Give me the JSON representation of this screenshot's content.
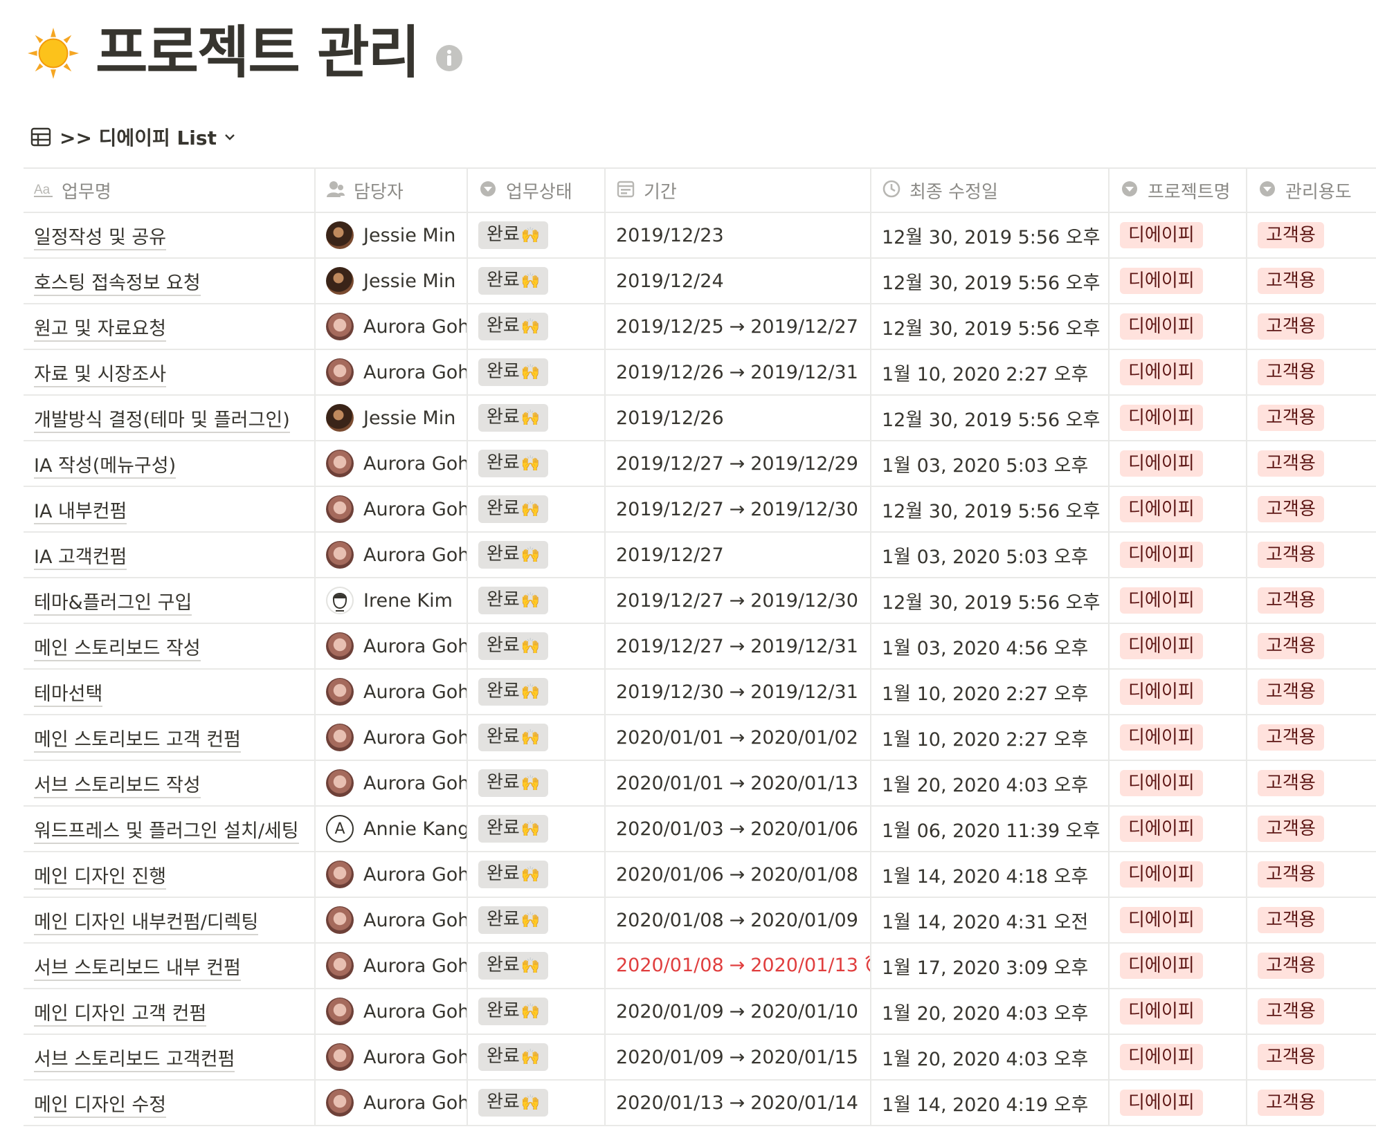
{
  "page": {
    "title": "프로젝트 관리",
    "icon": "sun-emoji"
  },
  "view": {
    "name": ">> 디에이피 List",
    "icon": "table-icon"
  },
  "columns": [
    {
      "key": "name",
      "label": "업무명",
      "icon": "text-property-icon"
    },
    {
      "key": "assignee",
      "label": "담당자",
      "icon": "person-property-icon"
    },
    {
      "key": "status",
      "label": "업무상태",
      "icon": "select-property-icon"
    },
    {
      "key": "period",
      "label": "기간",
      "icon": "calendar-property-icon"
    },
    {
      "key": "edited",
      "label": "최종 수정일",
      "icon": "clock-property-icon"
    },
    {
      "key": "project",
      "label": "프로젝트명",
      "icon": "select-property-icon"
    },
    {
      "key": "usage",
      "label": "관리용도",
      "icon": "select-property-icon"
    }
  ],
  "colors": {
    "status_tag_bg": "#e3e2e0",
    "project_tag_bg": "#ffe2dd",
    "overdue_text": "#e03e3e",
    "border": "#e9e9e7"
  },
  "rows": [
    {
      "name": "일정작성 및 공유",
      "assignee": "Jessie Min",
      "avatar": "jessie",
      "status": "완료",
      "start": "2019/12/23",
      "end": "",
      "edited": "12월 30, 2019 5:56 오후",
      "project": "디에이피",
      "usage": "고객용",
      "overdue": false
    },
    {
      "name": "호스팅 접속정보 요청",
      "assignee": "Jessie Min",
      "avatar": "jessie",
      "status": "완료",
      "start": "2019/12/24",
      "end": "",
      "edited": "12월 30, 2019 5:56 오후",
      "project": "디에이피",
      "usage": "고객용",
      "overdue": false
    },
    {
      "name": "원고 및 자료요청",
      "assignee": "Aurora Goh",
      "avatar": "aurora",
      "status": "완료",
      "start": "2019/12/25",
      "end": "2019/12/27",
      "edited": "12월 30, 2019 5:56 오후",
      "project": "디에이피",
      "usage": "고객용",
      "overdue": false
    },
    {
      "name": "자료 및 시장조사",
      "assignee": "Aurora Goh",
      "avatar": "aurora",
      "status": "완료",
      "start": "2019/12/26",
      "end": "2019/12/31",
      "edited": "1월 10, 2020 2:27 오후",
      "project": "디에이피",
      "usage": "고객용",
      "overdue": false
    },
    {
      "name": "개발방식 결정(테마 및 플러그인)",
      "assignee": "Jessie Min",
      "avatar": "jessie",
      "status": "완료",
      "start": "2019/12/26",
      "end": "",
      "edited": "12월 30, 2019 5:56 오후",
      "project": "디에이피",
      "usage": "고객용",
      "overdue": false
    },
    {
      "name": "IA 작성(메뉴구성)",
      "assignee": "Aurora Goh",
      "avatar": "aurora",
      "status": "완료",
      "start": "2019/12/27",
      "end": "2019/12/29",
      "edited": "1월 03, 2020 5:03 오후",
      "project": "디에이피",
      "usage": "고객용",
      "overdue": false
    },
    {
      "name": "IA 내부컨펌",
      "assignee": "Aurora Goh",
      "avatar": "aurora",
      "status": "완료",
      "start": "2019/12/27",
      "end": "2019/12/30",
      "edited": "12월 30, 2019 5:56 오후",
      "project": "디에이피",
      "usage": "고객용",
      "overdue": false
    },
    {
      "name": "IA 고객컨펌",
      "assignee": "Aurora Goh",
      "avatar": "aurora",
      "status": "완료",
      "start": "2019/12/27",
      "end": "",
      "edited": "1월 03, 2020 5:03 오후",
      "project": "디에이피",
      "usage": "고객용",
      "overdue": false
    },
    {
      "name": "테마&플러그인 구입",
      "assignee": "Irene Kim",
      "avatar": "irene",
      "status": "완료",
      "start": "2019/12/27",
      "end": "2019/12/30",
      "edited": "12월 30, 2019 5:56 오후",
      "project": "디에이피",
      "usage": "고객용",
      "overdue": false
    },
    {
      "name": "메인 스토리보드 작성",
      "assignee": "Aurora Goh",
      "avatar": "aurora",
      "status": "완료",
      "start": "2019/12/27",
      "end": "2019/12/31",
      "edited": "1월 03, 2020 4:56 오후",
      "project": "디에이피",
      "usage": "고객용",
      "overdue": false
    },
    {
      "name": "테마선택",
      "assignee": "Aurora Goh",
      "avatar": "aurora",
      "status": "완료",
      "start": "2019/12/30",
      "end": "2019/12/31",
      "edited": "1월 10, 2020 2:27 오후",
      "project": "디에이피",
      "usage": "고객용",
      "overdue": false
    },
    {
      "name": "메인 스토리보드 고객 컨펌",
      "assignee": "Aurora Goh",
      "avatar": "aurora",
      "status": "완료",
      "start": "2020/01/01",
      "end": "2020/01/02",
      "edited": "1월 10, 2020 2:27 오후",
      "project": "디에이피",
      "usage": "고객용",
      "overdue": false
    },
    {
      "name": "서브 스토리보드 작성",
      "assignee": "Aurora Goh",
      "avatar": "aurora",
      "status": "완료",
      "start": "2020/01/01",
      "end": "2020/01/13",
      "edited": "1월 20, 2020 4:03 오후",
      "project": "디에이피",
      "usage": "고객용",
      "overdue": false
    },
    {
      "name": "워드프레스 및 플러그인 설치/세팅",
      "assignee": "Annie Kang",
      "avatar": "annie",
      "status": "완료",
      "start": "2020/01/03",
      "end": "2020/01/06",
      "edited": "1월 06, 2020 11:39 오후",
      "project": "디에이피",
      "usage": "고객용",
      "overdue": false
    },
    {
      "name": "메인 디자인 진행",
      "assignee": "Aurora Goh",
      "avatar": "aurora",
      "status": "완료",
      "start": "2020/01/06",
      "end": "2020/01/08",
      "edited": "1월 14, 2020 4:18 오후",
      "project": "디에이피",
      "usage": "고객용",
      "overdue": false
    },
    {
      "name": "메인 디자인 내부컨펌/디렉팅",
      "assignee": "Aurora Goh",
      "avatar": "aurora",
      "status": "완료",
      "start": "2020/01/08",
      "end": "2020/01/09",
      "edited": "1월 14, 2020 4:31 오전",
      "project": "디에이피",
      "usage": "고객용",
      "overdue": false
    },
    {
      "name": "서브 스토리보드 내부 컨펌",
      "assignee": "Aurora Goh",
      "avatar": "aurora",
      "status": "완료",
      "start": "2020/01/08",
      "end": "2020/01/13",
      "edited": "1월 17, 2020 3:09 오후",
      "project": "디에이피",
      "usage": "고객용",
      "overdue": true
    },
    {
      "name": "메인 디자인 고객 컨펌",
      "assignee": "Aurora Goh",
      "avatar": "aurora",
      "status": "완료",
      "start": "2020/01/09",
      "end": "2020/01/10",
      "edited": "1월 20, 2020 4:03 오후",
      "project": "디에이피",
      "usage": "고객용",
      "overdue": false
    },
    {
      "name": "서브 스토리보드 고객컨펌",
      "assignee": "Aurora Goh",
      "avatar": "aurora",
      "status": "완료",
      "start": "2020/01/09",
      "end": "2020/01/15",
      "edited": "1월 20, 2020 4:03 오후",
      "project": "디에이피",
      "usage": "고객용",
      "overdue": false
    },
    {
      "name": "메인 디자인 수정",
      "assignee": "Aurora Goh",
      "avatar": "aurora",
      "status": "완료",
      "start": "2020/01/13",
      "end": "2020/01/14",
      "edited": "1월 14, 2020 4:19 오후",
      "project": "디에이피",
      "usage": "고객용",
      "overdue": false
    }
  ]
}
